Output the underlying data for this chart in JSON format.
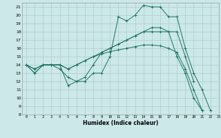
{
  "xlabel": "Humidex (Indice chaleur)",
  "background_color": "#cce8e8",
  "grid_color": "#aacccc",
  "line_color": "#1a7060",
  "xlim": [
    -0.5,
    23
  ],
  "ylim": [
    8,
    21.5
  ],
  "xticks": [
    0,
    1,
    2,
    3,
    4,
    5,
    6,
    7,
    8,
    9,
    10,
    11,
    12,
    13,
    14,
    15,
    16,
    17,
    18,
    19,
    20,
    21,
    22,
    23
  ],
  "yticks": [
    8,
    9,
    10,
    11,
    12,
    13,
    14,
    15,
    16,
    17,
    18,
    19,
    20,
    21
  ],
  "series": [
    {
      "x": [
        0,
        1,
        2,
        3,
        4,
        5,
        6,
        7,
        8,
        9,
        10,
        11,
        12,
        13,
        14,
        15,
        16,
        17,
        18,
        19,
        20,
        21,
        22
      ],
      "y": [
        14,
        13,
        14,
        14,
        14,
        11.5,
        12,
        12,
        13,
        13,
        15,
        19.8,
        19.3,
        20,
        21.2,
        21,
        21,
        19.8,
        19.8,
        16,
        13,
        11,
        8.5
      ]
    },
    {
      "x": [
        0,
        1,
        2,
        3,
        4,
        5,
        6,
        7,
        8,
        9,
        10,
        11,
        12,
        13,
        14,
        15,
        16,
        17,
        18,
        19,
        20,
        21,
        22
      ],
      "y": [
        14,
        13,
        14,
        14,
        13.5,
        12.5,
        12,
        12.5,
        14,
        15.5,
        16.0,
        16.5,
        17.0,
        17.5,
        18.0,
        18.5,
        18.5,
        18.0,
        15,
        13,
        10,
        8.5,
        null
      ]
    },
    {
      "x": [
        0,
        1,
        2,
        3,
        4,
        5,
        6,
        7,
        8,
        9,
        10,
        11,
        12,
        13,
        14,
        15,
        16,
        17,
        18,
        19,
        20,
        21,
        22
      ],
      "y": [
        14,
        13.5,
        14,
        14,
        14,
        13.5,
        14,
        14.5,
        15,
        15.5,
        16.0,
        16.5,
        17.0,
        17.5,
        18.0,
        18.0,
        18.0,
        18.0,
        18.0,
        15,
        12,
        null,
        null
      ]
    },
    {
      "x": [
        0,
        1,
        2,
        3,
        4,
        5,
        6,
        7,
        8,
        9,
        10,
        11,
        12,
        13,
        14,
        15,
        16,
        17,
        18,
        19,
        20,
        21,
        22
      ],
      "y": [
        14,
        13.5,
        14,
        14,
        14,
        13.5,
        14,
        14.5,
        15,
        15.3,
        15.6,
        15.8,
        16.0,
        16.2,
        16.4,
        16.4,
        16.3,
        16.0,
        15.5,
        13.5,
        11,
        8.5,
        null
      ]
    }
  ]
}
